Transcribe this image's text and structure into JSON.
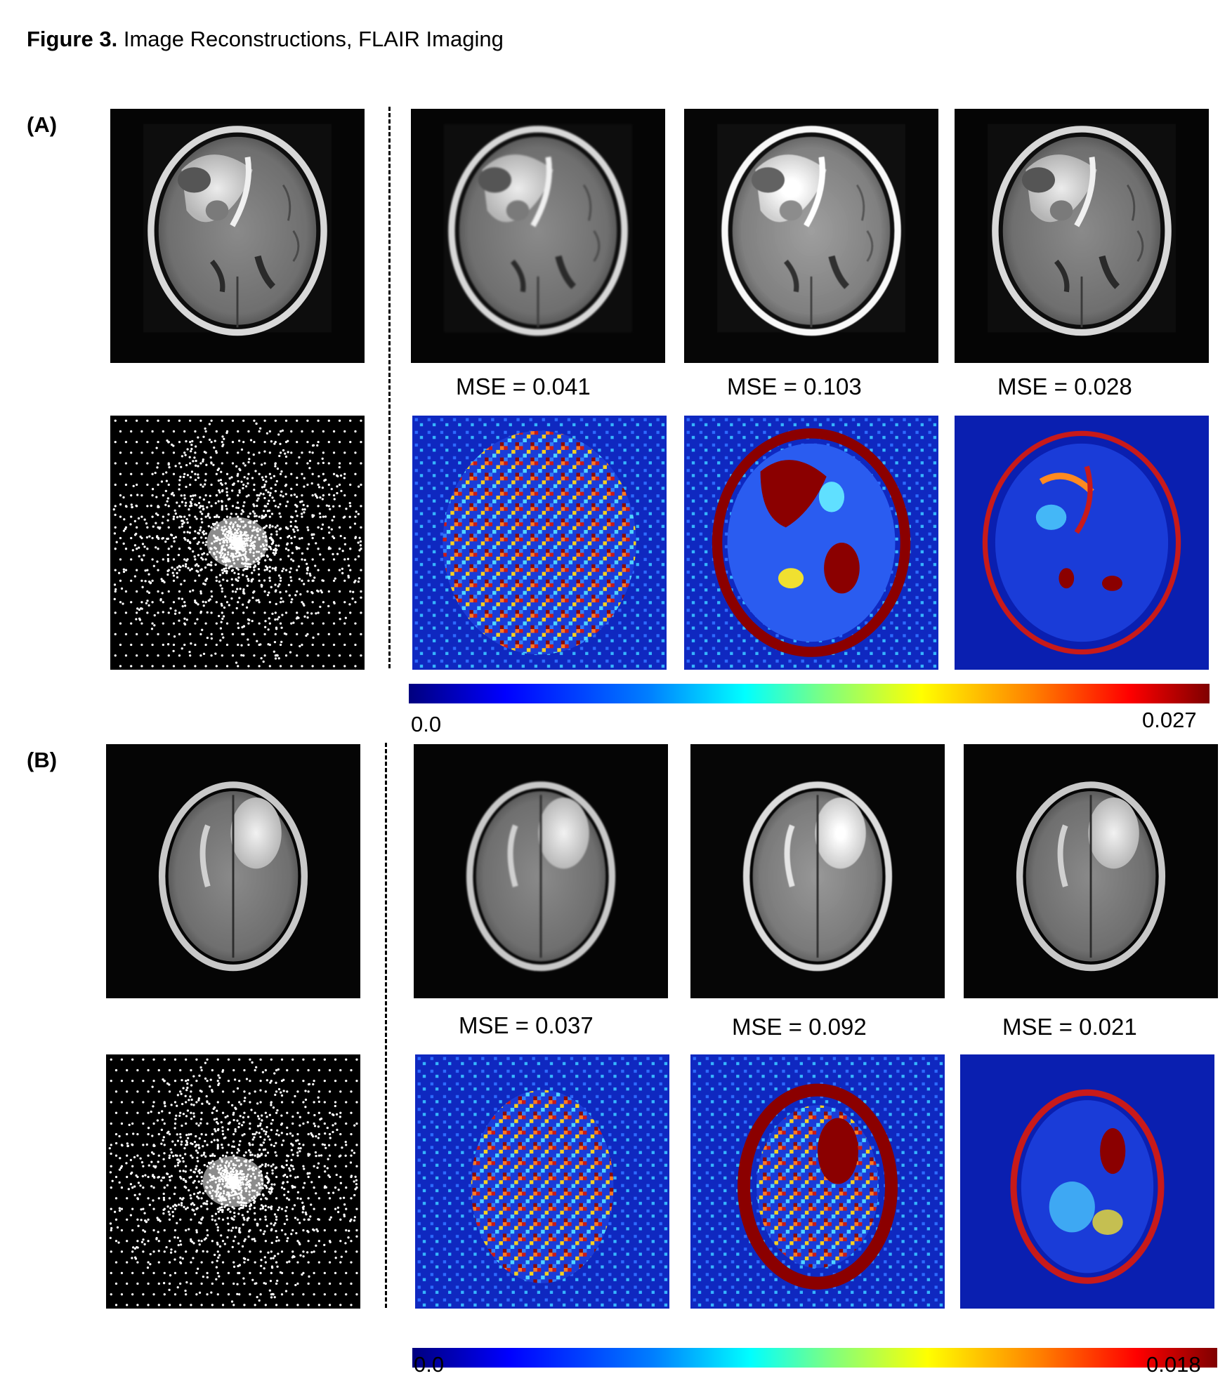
{
  "figure": {
    "label": "Figure 3.",
    "caption": "Image Reconstructions, FLAIR Imaging"
  },
  "panels": [
    {
      "label": "(A)",
      "mse": [
        "MSE = 0.041",
        "MSE = 0.103",
        "MSE = 0.028"
      ],
      "colorbar": {
        "min_label": "0.0",
        "max_label": "0.027",
        "colormap": "jet"
      }
    },
    {
      "label": "(B)",
      "mse": [
        "MSE = 0.037",
        "MSE = 0.092",
        "MSE = 0.021"
      ],
      "colorbar": {
        "min_label": "0.0",
        "max_label": "0.018",
        "colormap": "jet"
      }
    }
  ],
  "colors": {
    "background": "#ffffff",
    "image_background": "#000000",
    "error_map_background": "#0a1fb0",
    "error_high": "#8b0000"
  }
}
